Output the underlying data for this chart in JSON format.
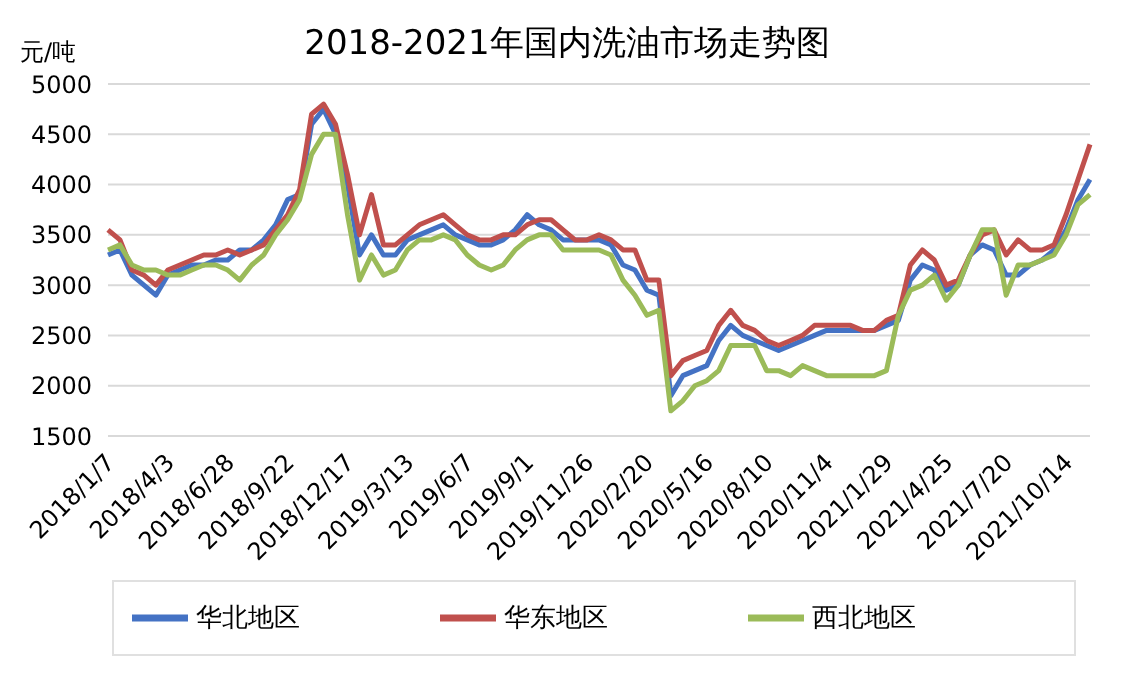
{
  "chart_data": {
    "type": "line",
    "title": "2018-2021年国内洗油市场走势图",
    "ylabel": "元/吨",
    "categories": [
      "2018/1/7",
      null,
      null,
      null,
      null,
      "2018/4/3",
      null,
      null,
      null,
      null,
      "2018/6/28",
      null,
      null,
      null,
      null,
      "2018/9/22",
      null,
      null,
      null,
      null,
      "2018/12/17",
      null,
      null,
      null,
      null,
      "2019/3/13",
      null,
      null,
      null,
      null,
      "2019/6/7",
      null,
      null,
      null,
      null,
      "2019/9/1",
      null,
      null,
      null,
      null,
      "2019/11/26",
      null,
      null,
      null,
      null,
      "2020/2/20",
      null,
      null,
      null,
      null,
      "2020/5/16",
      null,
      null,
      null,
      null,
      "2020/8/10",
      null,
      null,
      null,
      null,
      "2020/11/4",
      null,
      null,
      null,
      null,
      "2021/1/29",
      null,
      null,
      null,
      null,
      "2021/4/25",
      null,
      null,
      null,
      null,
      "2021/7/20",
      null,
      null,
      null,
      null,
      "2021/10/14",
      null,
      null
    ],
    "series": [
      {
        "name": "华北地区",
        "color": "#4472c4",
        "values": [
          3300,
          3350,
          3100,
          3000,
          2900,
          3100,
          3150,
          3200,
          3200,
          3250,
          3250,
          3350,
          3350,
          3450,
          3600,
          3850,
          3900,
          4600,
          4750,
          4500,
          4000,
          3300,
          3500,
          3300,
          3300,
          3450,
          3500,
          3550,
          3600,
          3500,
          3450,
          3400,
          3400,
          3450,
          3550,
          3700,
          3600,
          3550,
          3450,
          3450,
          3450,
          3450,
          3400,
          3200,
          3150,
          2950,
          2900,
          1900,
          2100,
          2150,
          2200,
          2450,
          2600,
          2500,
          2450,
          2400,
          2350,
          2400,
          2450,
          2500,
          2550,
          2550,
          2550,
          2550,
          2550,
          2600,
          2650,
          3050,
          3200,
          3150,
          2950,
          3000,
          3300,
          3400,
          3350,
          3100,
          3100,
          3200,
          3250,
          3350,
          3550,
          3850,
          4050
        ]
      },
      {
        "name": "华东地区",
        "color": "#c0504d",
        "values": [
          3550,
          3450,
          3150,
          3100,
          3000,
          3150,
          3200,
          3250,
          3300,
          3300,
          3350,
          3300,
          3350,
          3400,
          3550,
          3700,
          3950,
          4700,
          4800,
          4600,
          4100,
          3500,
          3900,
          3400,
          3400,
          3500,
          3600,
          3650,
          3700,
          3600,
          3500,
          3450,
          3450,
          3500,
          3500,
          3600,
          3650,
          3650,
          3550,
          3450,
          3450,
          3500,
          3450,
          3350,
          3350,
          3050,
          3050,
          2100,
          2250,
          2300,
          2350,
          2600,
          2750,
          2600,
          2550,
          2450,
          2400,
          2450,
          2500,
          2600,
          2600,
          2600,
          2600,
          2550,
          2550,
          2650,
          2700,
          3200,
          3350,
          3250,
          3000,
          3050,
          3300,
          3500,
          3550,
          3300,
          3450,
          3350,
          3350,
          3400,
          3700,
          4050,
          4400
        ]
      },
      {
        "name": "西北地区",
        "color": "#9bbb59",
        "values": [
          3350,
          3400,
          3200,
          3150,
          3150,
          3100,
          3100,
          3150,
          3200,
          3200,
          3150,
          3050,
          3200,
          3300,
          3500,
          3650,
          3850,
          4300,
          4500,
          4500,
          3700,
          3050,
          3300,
          3100,
          3150,
          3350,
          3450,
          3450,
          3500,
          3450,
          3300,
          3200,
          3150,
          3200,
          3350,
          3450,
          3500,
          3500,
          3350,
          3350,
          3350,
          3350,
          3300,
          3050,
          2900,
          2700,
          2750,
          1750,
          1850,
          2000,
          2050,
          2150,
          2400,
          2400,
          2400,
          2150,
          2150,
          2100,
          2200,
          2150,
          2100,
          2100,
          2100,
          2100,
          2100,
          2150,
          2700,
          2950,
          3000,
          3100,
          2850,
          3000,
          3300,
          3550,
          3550,
          2900,
          3200,
          3200,
          3250,
          3300,
          3500,
          3800,
          3900
        ]
      }
    ],
    "ylim": [
      1500,
      5000
    ],
    "yticks": [
      1500,
      2000,
      2500,
      3000,
      3500,
      4000,
      4500,
      5000
    ],
    "grid": "y",
    "legend": "bottom",
    "marker": "none",
    "line_style": "solid"
  }
}
